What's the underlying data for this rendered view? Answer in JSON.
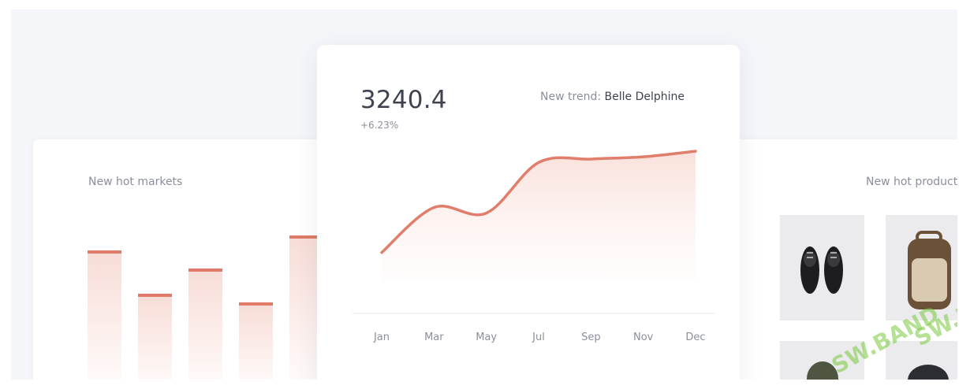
{
  "left_card": {
    "title": "New hot markets",
    "bars": [
      0.78,
      0.54,
      0.68,
      0.49,
      0.86
    ]
  },
  "center_card": {
    "value": "3240.4",
    "change": "+6.23%",
    "trend_label": "New trend:",
    "trend_name": "Belle Delphine"
  },
  "right_card": {
    "title": "New hot products"
  },
  "chart_data": {
    "type": "area",
    "categories": [
      "Jan",
      "Mar",
      "May",
      "Jul",
      "Sep",
      "Nov",
      "Dec"
    ],
    "series": [
      {
        "values": [
          0.1,
          0.5,
          0.45,
          0.9,
          0.93,
          0.95,
          1.0
        ]
      }
    ],
    "color": "#e07d6b",
    "grid": false
  },
  "watermark": "SW.BAND"
}
